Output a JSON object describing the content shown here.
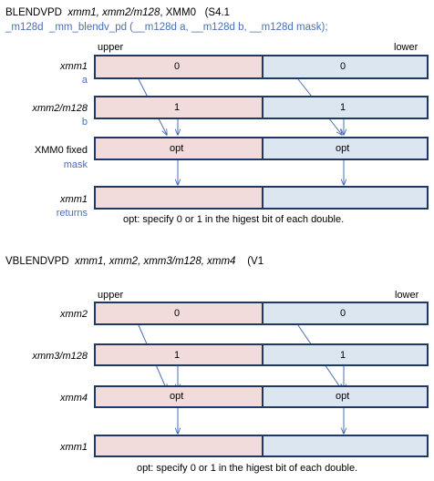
{
  "section1": {
    "mnemonic": "BLENDVPD",
    "operands": "xmm1, xmm2/m128",
    "operand_tail": ", XMM0",
    "ext": "(S4.1",
    "intrinsic_type": "_m128d",
    "intrinsic_call": "_mm_blendv_pd  (__m128d a, __m128d b, __m128d mask);",
    "upper_label": "upper",
    "lower_label": "lower",
    "rows": [
      {
        "reg": "xmm1",
        "arg": "a",
        "upper": "0",
        "lower": "0",
        "reg_italic": true
      },
      {
        "reg": "xmm2/m128",
        "arg": "b",
        "upper": "1",
        "lower": "1",
        "reg_italic": true
      },
      {
        "reg": "XMM0 fixed",
        "arg": "mask",
        "upper": "opt",
        "lower": "opt",
        "reg_italic": false
      },
      {
        "reg": "xmm1",
        "arg": "returns",
        "upper": "",
        "lower": "",
        "reg_italic": true
      }
    ],
    "note": "opt:  specify 0 or 1 in the higest bit of each double."
  },
  "section2": {
    "mnemonic": "VBLENDVPD",
    "operands": "xmm1, xmm2, xmm3/m128, xmm4",
    "ext": "(V1",
    "upper_label": "upper",
    "lower_label": "lower",
    "rows": [
      {
        "reg": "xmm2",
        "upper": "0",
        "lower": "0"
      },
      {
        "reg": "xmm3/m128",
        "upper": "1",
        "lower": "1"
      },
      {
        "reg": "xmm4",
        "upper": "opt",
        "lower": "opt"
      },
      {
        "reg": "xmm1",
        "upper": "",
        "lower": ""
      }
    ],
    "note": "opt:  specify 0 or 1 in the higest bit of each double."
  },
  "colors": {
    "upper_fill": "#f2dcdb",
    "lower_fill": "#dce6f1",
    "box_border": "#1f3864",
    "arrow": "#4a6fb5",
    "label_blue": "#4a6fb5"
  }
}
